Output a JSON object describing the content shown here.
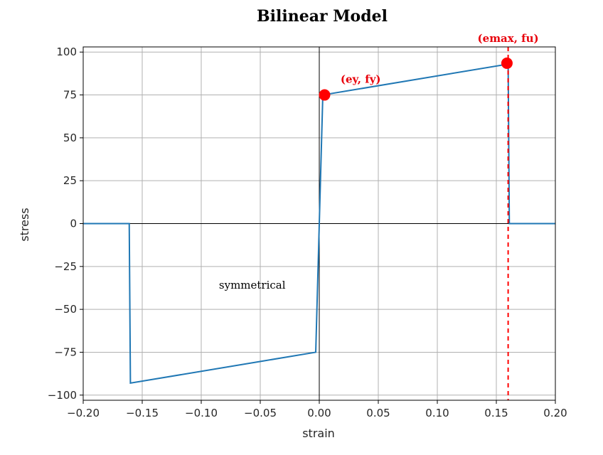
{
  "chart_data": {
    "type": "line",
    "title": "Bilinear Model",
    "xlabel": "strain",
    "ylabel": "stress",
    "xlim": [
      -0.2,
      0.2
    ],
    "ylim": [
      -103,
      103
    ],
    "grid": true,
    "xticks": [
      -0.2,
      -0.15,
      -0.1,
      -0.05,
      0.0,
      0.05,
      0.1,
      0.15,
      0.2
    ],
    "xtick_labels": [
      "−0.20",
      "−0.15",
      "−0.10",
      "−0.05",
      "0.00",
      "0.05",
      "0.10",
      "0.15",
      "0.20"
    ],
    "yticks": [
      100,
      75,
      50,
      25,
      0,
      -25,
      -50,
      -75,
      -100
    ],
    "ytick_labels": [
      "100",
      "75",
      "50",
      "25",
      "0",
      "−25",
      "−50",
      "−75",
      "−100"
    ],
    "series": [
      {
        "color": "#1f77b4",
        "x": [
          -0.2,
          -0.161,
          -0.16,
          -0.003,
          0.0,
          0.003,
          0.16,
          0.161,
          0.2
        ],
        "y": [
          0,
          0,
          -93,
          -75,
          0,
          75,
          93,
          0,
          0
        ]
      }
    ],
    "points": [
      {
        "x": 0.0045,
        "y": 75,
        "color": "#ff0000"
      },
      {
        "x": 0.159,
        "y": 93.5,
        "color": "#ff0000"
      }
    ],
    "vlines": [
      {
        "x": 0.16,
        "color": "#ff0000",
        "style": "dashed"
      }
    ],
    "reference_lines": {
      "x0": 0,
      "y0": 0,
      "color": "#000000"
    },
    "annotations": [
      {
        "text": "(ey, fy)",
        "x": 0.018,
        "y": 82,
        "color": "#e8000b"
      },
      {
        "text": "(emax, fu)",
        "x": 0.16,
        "y": 106,
        "color": "#e8000b"
      },
      {
        "text": "symmetrical",
        "x": -0.085,
        "y": -38,
        "color": "#000000"
      }
    ]
  }
}
